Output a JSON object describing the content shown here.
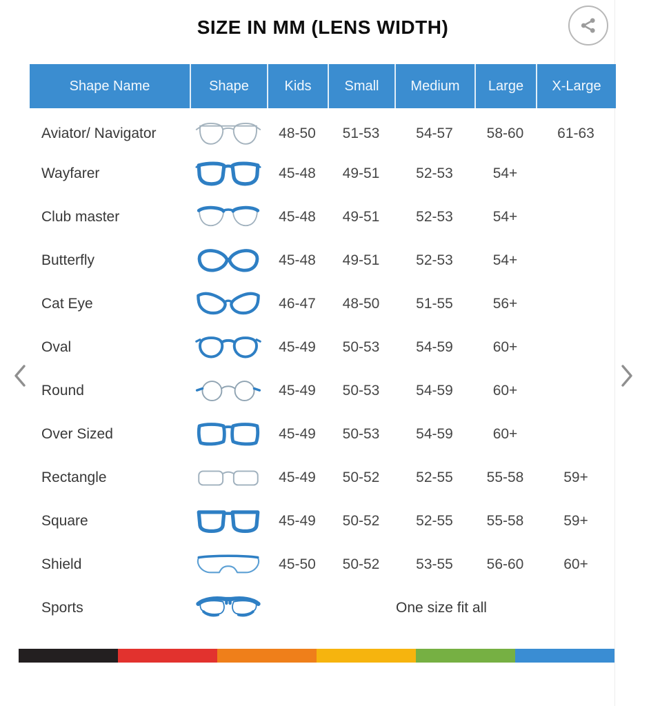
{
  "title": "SIZE IN MM (LENS WIDTH)",
  "share_button": {
    "icon": "share-icon"
  },
  "carousel": {
    "prev_icon": "chevron-left-icon",
    "next_icon": "chevron-right-icon"
  },
  "table": {
    "columns": [
      "Shape Name",
      "Shape",
      "Kids",
      "Small",
      "Medium",
      "Large",
      "X-Large"
    ],
    "rows": [
      {
        "name": "Aviator/ Navigator",
        "icon": "aviator-glasses-icon",
        "kids": "48-50",
        "small": "51-53",
        "medium": "54-57",
        "large": "58-60",
        "xlarge": "61-63"
      },
      {
        "name": "Wayfarer",
        "icon": "wayfarer-glasses-icon",
        "kids": "45-48",
        "small": "49-51",
        "medium": "52-53",
        "large": "54+",
        "xlarge": ""
      },
      {
        "name": "Club master",
        "icon": "clubmaster-glasses-icon",
        "kids": "45-48",
        "small": "49-51",
        "medium": "52-53",
        "large": "54+",
        "xlarge": ""
      },
      {
        "name": "Butterfly",
        "icon": "butterfly-glasses-icon",
        "kids": "45-48",
        "small": "49-51",
        "medium": "52-53",
        "large": "54+",
        "xlarge": ""
      },
      {
        "name": "Cat Eye",
        "icon": "cateye-glasses-icon",
        "kids": "46-47",
        "small": "48-50",
        "medium": "51-55",
        "large": "56+",
        "xlarge": ""
      },
      {
        "name": "Oval",
        "icon": "oval-glasses-icon",
        "kids": "45-49",
        "small": "50-53",
        "medium": "54-59",
        "large": "60+",
        "xlarge": ""
      },
      {
        "name": "Round",
        "icon": "round-glasses-icon",
        "kids": "45-49",
        "small": "50-53",
        "medium": "54-59",
        "large": "60+",
        "xlarge": ""
      },
      {
        "name": "Over Sized",
        "icon": "oversized-glasses-icon",
        "kids": "45-49",
        "small": "50-53",
        "medium": "54-59",
        "large": "60+",
        "xlarge": ""
      },
      {
        "name": "Rectangle",
        "icon": "rectangle-glasses-icon",
        "kids": "45-49",
        "small": "50-52",
        "medium": "52-55",
        "large": "55-58",
        "xlarge": "59+"
      },
      {
        "name": "Square",
        "icon": "square-glasses-icon",
        "kids": "45-49",
        "small": "50-52",
        "medium": "52-55",
        "large": "55-58",
        "xlarge": "59+"
      },
      {
        "name": "Shield",
        "icon": "shield-glasses-icon",
        "kids": "45-50",
        "small": "50-52",
        "medium": "53-55",
        "large": "56-60",
        "xlarge": "60+"
      },
      {
        "name": "Sports",
        "icon": "sports-glasses-icon",
        "note": "One size fit all"
      }
    ]
  },
  "colors": {
    "header_bg": "#3b8dd0",
    "frame_blue": "#2e7fc4",
    "outline_grey": "#a3b2bd"
  },
  "stripe": {
    "colors": [
      "#231f20",
      "#e2322e",
      "#ef7f1a",
      "#f6b40e",
      "#76b043",
      "#3a8dd3"
    ]
  }
}
